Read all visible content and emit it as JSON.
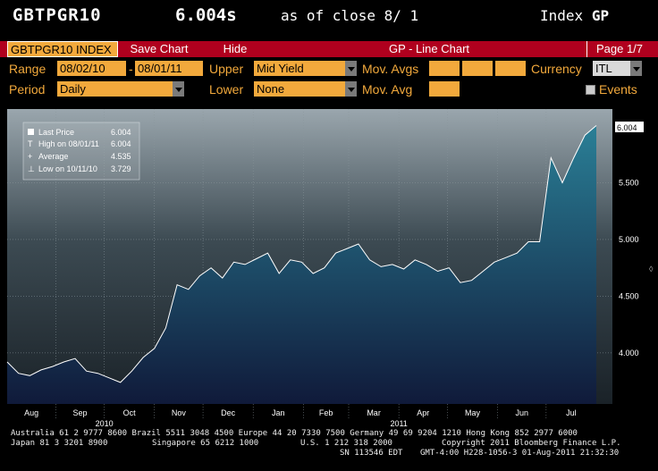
{
  "header": {
    "ticker": "GBTPGR10",
    "price": "6.004s",
    "as_of": "as of close  8/ 1",
    "index_label": "Index",
    "index_suffix": "GP"
  },
  "menu": {
    "tab": "GBTPGR10 INDEX",
    "save_chart": "Save Chart",
    "hide": "Hide",
    "title": "GP - Line Chart",
    "page": "Page 1/7"
  },
  "controls": {
    "range_label": "Range",
    "range_start": "08/02/10",
    "range_sep": "-",
    "range_end": "08/01/11",
    "upper_label": "Upper",
    "upper_value": "Mid Yield",
    "mov_avgs_label": "Mov. Avgs",
    "currency_label": "Currency",
    "currency_value": "ITL",
    "period_label": "Period",
    "period_value": "Daily",
    "lower_label": "Lower",
    "lower_value": "None",
    "mov_avg_label": "Mov. Avg",
    "events_label": "Events"
  },
  "legend": {
    "last_price_label": "Last Price",
    "last_price_value": "6.004",
    "high_label": "High on 08/01/11",
    "high_value": "6.004",
    "average_label": "Average",
    "average_value": "4.535",
    "low_label": "Low on 10/11/10",
    "low_value": "3.729"
  },
  "chart_data": {
    "type": "area",
    "series": [
      {
        "name": "Last Price",
        "x": [
          "2010-08-02",
          "2010-08-09",
          "2010-08-16",
          "2010-08-23",
          "2010-08-30",
          "2010-09-06",
          "2010-09-13",
          "2010-09-20",
          "2010-09-27",
          "2010-10-04",
          "2010-10-11",
          "2010-10-18",
          "2010-10-25",
          "2010-11-01",
          "2010-11-08",
          "2010-11-15",
          "2010-11-22",
          "2010-11-29",
          "2010-12-06",
          "2010-12-13",
          "2010-12-20",
          "2010-12-27",
          "2011-01-03",
          "2011-01-10",
          "2011-01-17",
          "2011-01-24",
          "2011-01-31",
          "2011-02-07",
          "2011-02-14",
          "2011-02-21",
          "2011-02-28",
          "2011-03-07",
          "2011-03-14",
          "2011-03-21",
          "2011-03-28",
          "2011-04-04",
          "2011-04-11",
          "2011-04-18",
          "2011-04-25",
          "2011-05-02",
          "2011-05-09",
          "2011-05-16",
          "2011-05-23",
          "2011-05-30",
          "2011-06-06",
          "2011-06-13",
          "2011-06-20",
          "2011-06-27",
          "2011-07-04",
          "2011-07-11",
          "2011-07-18",
          "2011-07-25",
          "2011-08-01"
        ],
        "values": [
          3.92,
          3.82,
          3.8,
          3.85,
          3.88,
          3.92,
          3.95,
          3.84,
          3.82,
          3.78,
          3.74,
          3.84,
          3.96,
          4.04,
          4.22,
          4.6,
          4.56,
          4.68,
          4.75,
          4.66,
          4.8,
          4.78,
          4.83,
          4.88,
          4.7,
          4.82,
          4.8,
          4.7,
          4.75,
          4.88,
          4.92,
          4.96,
          4.82,
          4.76,
          4.78,
          4.74,
          4.82,
          4.78,
          4.72,
          4.75,
          4.62,
          4.64,
          4.72,
          4.8,
          4.84,
          4.88,
          4.98,
          4.98,
          5.72,
          5.5,
          5.72,
          5.92,
          6.004
        ]
      }
    ],
    "title": "",
    "xlabel": "",
    "ylabel": "",
    "ylim": [
      3.55,
      6.15
    ],
    "yticks": [
      "4.000",
      "4.500",
      "5.000",
      "5.500"
    ],
    "y_tick_values": [
      4.0,
      4.5,
      5.0,
      5.5
    ],
    "last_label": "6.004",
    "month_labels": [
      "Aug",
      "Sep",
      "Oct",
      "Nov",
      "Dec",
      "Jan",
      "Feb",
      "Mar",
      "Apr",
      "May",
      "Jun",
      "Jul"
    ],
    "month_dates": [
      "2010-08-02",
      "2010-09-01",
      "2010-10-01",
      "2010-11-01",
      "2010-12-01",
      "2011-01-01",
      "2011-02-01",
      "2011-03-01",
      "2011-04-01",
      "2011-05-01",
      "2011-06-01",
      "2011-07-01"
    ],
    "year_labels": [
      "2010",
      "2011"
    ],
    "year_dates": [
      "2010-10-01",
      "2011-04-01"
    ],
    "grid": true,
    "legend_position": "top-left"
  },
  "footer": {
    "line1": "Australia 61 2 9777 8600 Brazil 5511 3048 4500 Europe 44 20 7330 7500 Germany 49 69 9204 1210 Hong Kong 852 2977 6000",
    "line2a": "Japan 81 3 3201 8900",
    "line2b": "Singapore 65 6212 1000",
    "line2c": "U.S. 1 212 318 2000",
    "line2d": "Copyright 2011 Bloomberg Finance L.P.",
    "line3a": "SN 113546 EDT",
    "line3b": "GMT-4:00 H228-1056-3 01-Aug-2011 21:32:30"
  },
  "colors": {
    "accent_orange": "#f2a93c",
    "menu_red": "#b0001e",
    "line": "#ffffff",
    "area_top": "#2a7f96",
    "area_bottom": "#101a3a"
  }
}
